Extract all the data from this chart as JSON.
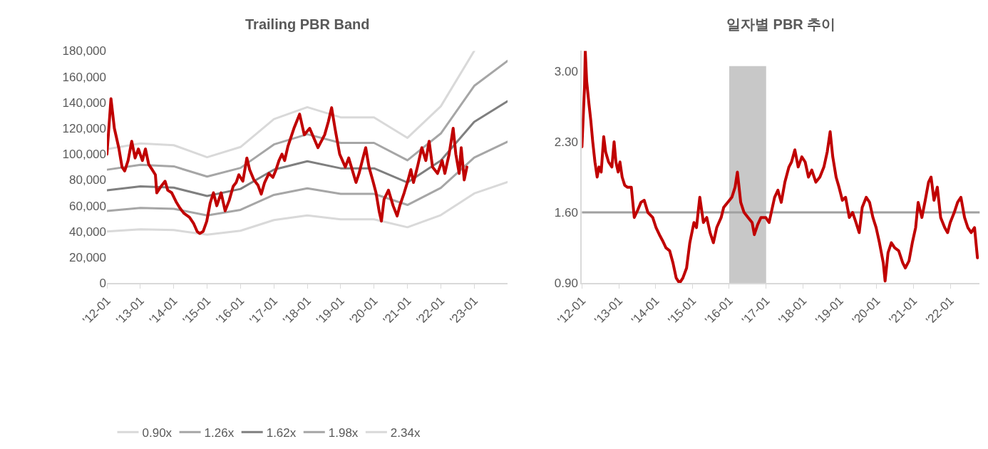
{
  "chart_data": [
    {
      "type": "line",
      "title": "Trailing PBR Band",
      "legend": "bottom",
      "xlim": [
        "2012-01-01",
        "2024-01-01"
      ],
      "ylim": [
        0,
        180000
      ],
      "xticks": [
        {
          "value": "2012-01-01",
          "label": "'12-01"
        },
        {
          "value": "2013-01-01",
          "label": "'13-01"
        },
        {
          "value": "2014-01-01",
          "label": "'14-01"
        },
        {
          "value": "2015-01-01",
          "label": "'15-01"
        },
        {
          "value": "2016-01-01",
          "label": "'16-01"
        },
        {
          "value": "2017-01-01",
          "label": "'17-01"
        },
        {
          "value": "2018-01-01",
          "label": "'18-01"
        },
        {
          "value": "2019-01-01",
          "label": "'19-01"
        },
        {
          "value": "2020-01-01",
          "label": "'20-01"
        },
        {
          "value": "2021-01-01",
          "label": "'21-01"
        },
        {
          "value": "2022-01-01",
          "label": "'22-01"
        },
        {
          "value": "2023-01-01",
          "label": "'23-01"
        }
      ],
      "yticks": [
        {
          "value": 0,
          "label": "0"
        },
        {
          "value": 20000,
          "label": "20,000"
        },
        {
          "value": 40000,
          "label": "40,000"
        },
        {
          "value": 60000,
          "label": "60,000"
        },
        {
          "value": 80000,
          "label": "80,000"
        },
        {
          "value": 100000,
          "label": "100,000"
        },
        {
          "value": 120000,
          "label": "120,000"
        },
        {
          "value": 140000,
          "label": "140,000"
        },
        {
          "value": 160000,
          "label": "160,000"
        },
        {
          "value": 180000,
          "label": "180,000"
        }
      ],
      "series": [
        {
          "name": "0.90x",
          "color": "#d9d9d9",
          "x": [
            "2012-01-01",
            "2013-01-01",
            "2014-01-01",
            "2015-01-01",
            "2016-01-01",
            "2017-01-01",
            "2018-01-01",
            "2019-01-01",
            "2020-01-01",
            "2021-01-01",
            "2022-01-01",
            "2023-01-01",
            "2024-01-01"
          ],
          "values": [
            40000,
            41700,
            41100,
            37500,
            40600,
            48900,
            52500,
            49400,
            49400,
            43300,
            52700,
            69500,
            78300
          ]
        },
        {
          "name": "1.26x",
          "color": "#a6a6a6",
          "x": [
            "2012-01-01",
            "2013-01-01",
            "2014-01-01",
            "2015-01-01",
            "2016-01-01",
            "2017-01-01",
            "2018-01-01",
            "2019-01-01",
            "2020-01-01",
            "2021-01-01",
            "2022-01-01",
            "2023-01-01",
            "2024-01-01"
          ],
          "values": [
            55900,
            58300,
            57600,
            52500,
            56800,
            68400,
            73500,
            69200,
            69200,
            60600,
            73800,
            97300,
            109600
          ]
        },
        {
          "name": "1.62x",
          "color": "#7f7f7f",
          "x": [
            "2012-01-01",
            "2013-01-01",
            "2014-01-01",
            "2015-01-01",
            "2016-01-01",
            "2017-01-01",
            "2018-01-01",
            "2019-01-01",
            "2020-01-01",
            "2021-01-01",
            "2022-01-01",
            "2023-01-01",
            "2024-01-01"
          ],
          "values": [
            72000,
            75000,
            74000,
            67500,
            73000,
            88000,
            94500,
            89000,
            89000,
            78000,
            95000,
            125000,
            141000
          ]
        },
        {
          "name": "1.98x",
          "color": "#a6a6a6",
          "x": [
            "2012-01-01",
            "2013-01-01",
            "2014-01-01",
            "2015-01-01",
            "2016-01-01",
            "2017-01-01",
            "2018-01-01",
            "2019-01-01",
            "2020-01-01",
            "2021-01-01",
            "2022-01-01",
            "2023-01-01",
            "2024-01-01"
          ],
          "values": [
            87900,
            91700,
            90500,
            82600,
            89300,
            107500,
            115400,
            108700,
            108700,
            95200,
            116000,
            152900,
            172300
          ]
        },
        {
          "name": "2.34x",
          "color": "#d9d9d9",
          "x": [
            "2012-01-01",
            "2013-01-01",
            "2014-01-01",
            "2015-01-01",
            "2016-01-01",
            "2017-01-01",
            "2018-01-01",
            "2019-01-01",
            "2020-01-01",
            "2021-01-01",
            "2022-01-01",
            "2023-01-01"
          ],
          "values": [
            103900,
            108300,
            106900,
            97600,
            105500,
            127100,
            136400,
            128500,
            128500,
            112600,
            137100,
            180000
          ]
        },
        {
          "color": "#c00000",
          "x": [
            "2012-01-01",
            "2012-02-14",
            "2012-03-22",
            "2012-05-09",
            "2012-06-14",
            "2012-07-13",
            "2012-08-19",
            "2012-09-28",
            "2012-11-04",
            "2012-12-10",
            "2013-01-23",
            "2013-02-25",
            "2013-04-02",
            "2013-05-09",
            "2013-06-14",
            "2013-06-29",
            "2013-08-15",
            "2013-09-28",
            "2013-10-27",
            "2013-12-10",
            "2014-01-27",
            "2014-03-11",
            "2014-04-24",
            "2014-06-22",
            "2014-08-08",
            "2014-09-14",
            "2014-10-13",
            "2014-11-18",
            "2014-12-28",
            "2015-02-03",
            "2015-03-11",
            "2015-04-17",
            "2015-06-03",
            "2015-07-17",
            "2015-08-30",
            "2015-10-13",
            "2015-11-15",
            "2015-12-14",
            "2016-01-27",
            "2016-03-11",
            "2016-04-10",
            "2016-05-27",
            "2016-07-10",
            "2016-08-15",
            "2016-09-21",
            "2016-11-07",
            "2016-12-21",
            "2017-01-19",
            "2017-02-25",
            "2017-03-30",
            "2017-04-28",
            "2017-06-03",
            "2017-08-08",
            "2017-10-09",
            "2017-11-29",
            "2018-01-27",
            "2018-04-28",
            "2018-07-10",
            "2018-08-19",
            "2018-09-24",
            "2018-10-31",
            "2018-12-21",
            "2019-02-21",
            "2019-03-30",
            "2019-06-18",
            "2019-07-21",
            "2019-08-26",
            "2019-10-02",
            "2019-11-07",
            "2019-12-17",
            "2020-01-23",
            "2020-02-28",
            "2020-03-22",
            "2020-04-20",
            "2020-06-07",
            "2020-07-28",
            "2020-09-10",
            "2020-10-09",
            "2020-11-26",
            "2021-01-08",
            "2021-02-07",
            "2021-03-08",
            "2021-04-20",
            "2021-06-07",
            "2021-07-21",
            "2021-08-26",
            "2021-10-02",
            "2021-11-26",
            "2022-01-16",
            "2022-02-14",
            "2022-04-02",
            "2022-05-16",
            "2022-06-14",
            "2022-07-21",
            "2022-08-12",
            "2022-09-14",
            "2022-10-13"
          ],
          "values": [
            100000,
            143000,
            120000,
            105000,
            90000,
            87000,
            95000,
            110000,
            97000,
            104000,
            95000,
            104000,
            92000,
            88000,
            84000,
            70000,
            75000,
            79000,
            72000,
            70000,
            63000,
            58000,
            54000,
            51000,
            46000,
            40000,
            38500,
            40000,
            48000,
            62000,
            70000,
            60000,
            70000,
            56000,
            64000,
            75000,
            78000,
            84000,
            79000,
            97000,
            88000,
            80000,
            76000,
            69000,
            78000,
            85000,
            82000,
            87000,
            95000,
            100000,
            95000,
            106000,
            120000,
            131000,
            115000,
            120000,
            105000,
            115000,
            125000,
            136000,
            120000,
            100000,
            90000,
            97000,
            78000,
            85000,
            95000,
            105000,
            90000,
            80000,
            70000,
            55000,
            48000,
            65000,
            72000,
            60000,
            52000,
            60000,
            70000,
            80000,
            88000,
            78000,
            90000,
            105000,
            95000,
            110000,
            90000,
            85000,
            95000,
            85000,
            100000,
            120000,
            100000,
            85000,
            105000,
            80000,
            90000
          ]
        }
      ]
    },
    {
      "type": "line",
      "title": "일자별 PBR 추이",
      "legend": false,
      "xlim": [
        "2012-01-01",
        "2022-10-20"
      ],
      "ylim": [
        0.9,
        3.2
      ],
      "xticks": [
        {
          "value": "2012-01-01",
          "label": "'12-01"
        },
        {
          "value": "2013-01-01",
          "label": "'13-01"
        },
        {
          "value": "2014-01-01",
          "label": "'14-01"
        },
        {
          "value": "2015-01-01",
          "label": "'15-01"
        },
        {
          "value": "2016-01-01",
          "label": "'16-01"
        },
        {
          "value": "2017-01-01",
          "label": "'17-01"
        },
        {
          "value": "2018-01-01",
          "label": "'18-01"
        },
        {
          "value": "2019-01-01",
          "label": "'19-01"
        },
        {
          "value": "2020-01-01",
          "label": "'20-01"
        },
        {
          "value": "2021-01-01",
          "label": "'21-01"
        },
        {
          "value": "2022-01-01",
          "label": "'22-01"
        }
      ],
      "yticks": [
        {
          "value": 0.9,
          "label": "0.90"
        },
        {
          "value": 1.6,
          "label": "1.60"
        },
        {
          "value": 2.3,
          "label": "2.30"
        },
        {
          "value": 3.0,
          "label": "3.00"
        }
      ],
      "bands": [
        {
          "axis": "x",
          "from": "2016-01-01",
          "to": "2017-01-01",
          "color": "#c8c8c8"
        }
      ],
      "ref_lines": [
        {
          "axis": "y",
          "value": 1.6,
          "color": "#a0a0a0"
        }
      ],
      "series": [
        {
          "color": "#c00000",
          "x": [
            "2012-01-01",
            "2012-01-16",
            "2012-01-27",
            "2012-02-03",
            "2012-02-17",
            "2012-03-08",
            "2012-03-30",
            "2012-04-17",
            "2012-05-09",
            "2012-05-31",
            "2012-06-18",
            "2012-07-10",
            "2012-08-04",
            "2012-08-23",
            "2012-09-21",
            "2012-10-24",
            "2012-11-15",
            "2012-12-03",
            "2012-12-25",
            "2013-01-12",
            "2013-02-03",
            "2013-02-28",
            "2013-03-26",
            "2013-05-05",
            "2013-06-03",
            "2013-07-06",
            "2013-08-08",
            "2013-09-10",
            "2013-10-16",
            "2013-12-03",
            "2014-01-05",
            "2014-02-07",
            "2014-03-11",
            "2014-04-13",
            "2014-05-20",
            "2014-06-22",
            "2014-07-24",
            "2014-08-26",
            "2014-09-28",
            "2014-11-04",
            "2014-12-06",
            "2015-01-16",
            "2015-02-10",
            "2015-03-15",
            "2015-04-20",
            "2015-05-23",
            "2015-06-25",
            "2015-07-28",
            "2015-08-30",
            "2015-10-13",
            "2015-11-07",
            "2015-12-17",
            "2016-01-27",
            "2016-02-28",
            "2016-03-22",
            "2016-04-24",
            "2016-05-27",
            "2016-07-06",
            "2016-08-15",
            "2016-09-06",
            "2016-10-09",
            "2016-11-11",
            "2016-12-28",
            "2017-01-30",
            "2017-02-21",
            "2017-03-26",
            "2017-04-28",
            "2017-05-31",
            "2017-07-06",
            "2017-08-15",
            "2017-09-10",
            "2017-10-13",
            "2017-11-15",
            "2017-12-21",
            "2018-01-23",
            "2018-02-25",
            "2018-03-30",
            "2018-05-09",
            "2018-06-18",
            "2018-07-28",
            "2018-08-30",
            "2018-09-28",
            "2018-10-24",
            "2018-11-26",
            "2018-12-25",
            "2019-01-27",
            "2019-02-28",
            "2019-04-06",
            "2019-05-09",
            "2019-06-11",
            "2019-07-13",
            "2019-08-12",
            "2019-09-21",
            "2019-10-24",
            "2019-11-26",
            "2019-12-28",
            "2020-01-30",
            "2020-03-08",
            "2020-03-26",
            "2020-04-24",
            "2020-05-27",
            "2020-06-29",
            "2020-08-08",
            "2020-09-17",
            "2020-10-13",
            "2020-11-18",
            "2020-12-21",
            "2021-01-23",
            "2021-02-17",
            "2021-03-26",
            "2021-04-28",
            "2021-05-31",
            "2021-06-25",
            "2021-07-24",
            "2021-08-26",
            "2021-09-28",
            "2021-11-07",
            "2021-12-06",
            "2022-01-01",
            "2022-02-10",
            "2022-03-15",
            "2022-04-17",
            "2022-05-23",
            "2022-06-25",
            "2022-07-28",
            "2022-08-30",
            "2022-09-28"
          ],
          "values": [
            2.25,
            2.6,
            2.85,
            3.2,
            2.9,
            2.7,
            2.5,
            2.3,
            2.1,
            1.95,
            2.05,
            2.0,
            2.35,
            2.2,
            2.1,
            2.05,
            2.3,
            2.1,
            2.0,
            2.1,
            1.95,
            1.87,
            1.85,
            1.85,
            1.55,
            1.62,
            1.7,
            1.72,
            1.6,
            1.55,
            1.45,
            1.38,
            1.32,
            1.25,
            1.22,
            1.1,
            0.95,
            0.9,
            0.95,
            1.05,
            1.3,
            1.5,
            1.45,
            1.75,
            1.5,
            1.55,
            1.4,
            1.3,
            1.45,
            1.55,
            1.65,
            1.7,
            1.75,
            1.85,
            2.0,
            1.7,
            1.6,
            1.55,
            1.5,
            1.38,
            1.48,
            1.55,
            1.55,
            1.5,
            1.6,
            1.75,
            1.82,
            1.7,
            1.9,
            2.05,
            2.1,
            2.22,
            2.05,
            2.15,
            2.1,
            1.95,
            2.02,
            1.9,
            1.95,
            2.05,
            2.2,
            2.4,
            2.15,
            1.95,
            1.85,
            1.72,
            1.75,
            1.55,
            1.6,
            1.5,
            1.4,
            1.65,
            1.75,
            1.7,
            1.55,
            1.45,
            1.3,
            1.1,
            0.92,
            1.2,
            1.3,
            1.25,
            1.22,
            1.1,
            1.05,
            1.12,
            1.3,
            1.45,
            1.7,
            1.55,
            1.72,
            1.9,
            1.95,
            1.72,
            1.85,
            1.55,
            1.45,
            1.4,
            1.5,
            1.6,
            1.7,
            1.75,
            1.55,
            1.45,
            1.4,
            1.45,
            1.15
          ]
        }
      ]
    }
  ]
}
